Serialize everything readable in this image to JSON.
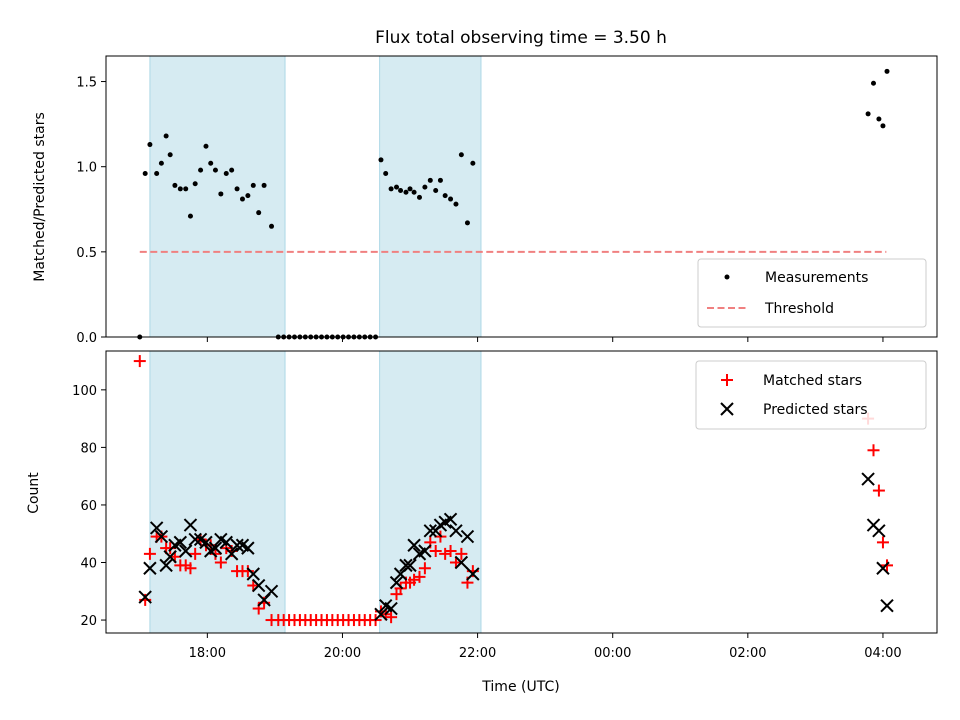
{
  "chart_data": {
    "type": "scatter",
    "title": "Flux total observing time = 3.50 h",
    "xlabel": "Time (UTC)",
    "x_unit": "hours since 00:00 (day 1)",
    "xlim": [
      16.5,
      28.8
    ],
    "x_ticks": [
      {
        "value": 18,
        "label": "18:00"
      },
      {
        "value": 20,
        "label": "20:00"
      },
      {
        "value": 22,
        "label": "22:00"
      },
      {
        "value": 24,
        "label": "00:00"
      },
      {
        "value": 26,
        "label": "02:00"
      },
      {
        "value": 28,
        "label": "04:00"
      }
    ],
    "shaded_intervals": [
      {
        "start": 17.15,
        "end": 19.15,
        "color": "#add8e6"
      },
      {
        "start": 20.55,
        "end": 22.05,
        "color": "#add8e6"
      }
    ],
    "top": {
      "ylabel": "Matched/Predicted stars",
      "ylim": [
        0,
        1.65
      ],
      "y_ticks": [
        {
          "value": 0,
          "label": "0.0"
        },
        {
          "value": 0.5,
          "label": "0.5"
        },
        {
          "value": 1.0,
          "label": "1.0"
        },
        {
          "value": 1.5,
          "label": "1.5"
        }
      ],
      "threshold": {
        "value": 0.5,
        "x_start": 17.0,
        "x_end": 28.05,
        "color": "#f08080"
      },
      "legend": {
        "position": "lower-right",
        "entries": [
          "Measurements",
          "Threshold"
        ]
      },
      "measurements": [
        [
          17.0,
          0.0
        ],
        [
          17.08,
          0.96
        ],
        [
          17.15,
          1.13
        ],
        [
          17.25,
          0.96
        ],
        [
          17.32,
          1.02
        ],
        [
          17.39,
          1.18
        ],
        [
          17.45,
          1.07
        ],
        [
          17.52,
          0.89
        ],
        [
          17.6,
          0.87
        ],
        [
          17.68,
          0.87
        ],
        [
          17.75,
          0.71
        ],
        [
          17.82,
          0.9
        ],
        [
          17.9,
          0.98
        ],
        [
          17.98,
          1.12
        ],
        [
          18.05,
          1.02
        ],
        [
          18.12,
          0.98
        ],
        [
          18.2,
          0.84
        ],
        [
          18.28,
          0.96
        ],
        [
          18.36,
          0.98
        ],
        [
          18.44,
          0.87
        ],
        [
          18.52,
          0.81
        ],
        [
          18.6,
          0.83
        ],
        [
          18.68,
          0.89
        ],
        [
          18.76,
          0.73
        ],
        [
          18.84,
          0.89
        ],
        [
          18.95,
          0.65
        ],
        [
          19.05,
          0.0
        ],
        [
          19.13,
          0.0
        ],
        [
          19.21,
          0.0
        ],
        [
          19.29,
          0.0
        ],
        [
          19.37,
          0.0
        ],
        [
          19.45,
          0.0
        ],
        [
          19.53,
          0.0
        ],
        [
          19.61,
          0.0
        ],
        [
          19.69,
          0.0
        ],
        [
          19.77,
          0.0
        ],
        [
          19.85,
          0.0
        ],
        [
          19.93,
          0.0
        ],
        [
          20.01,
          0.0
        ],
        [
          20.09,
          0.0
        ],
        [
          20.17,
          0.0
        ],
        [
          20.25,
          0.0
        ],
        [
          20.33,
          0.0
        ],
        [
          20.41,
          0.0
        ],
        [
          20.49,
          0.0
        ],
        [
          20.57,
          1.04
        ],
        [
          20.64,
          0.96
        ],
        [
          20.72,
          0.87
        ],
        [
          20.8,
          0.88
        ],
        [
          20.86,
          0.86
        ],
        [
          20.94,
          0.85
        ],
        [
          21.0,
          0.87
        ],
        [
          21.06,
          0.85
        ],
        [
          21.14,
          0.82
        ],
        [
          21.22,
          0.88
        ],
        [
          21.3,
          0.92
        ],
        [
          21.38,
          0.86
        ],
        [
          21.45,
          0.92
        ],
        [
          21.52,
          0.83
        ],
        [
          21.6,
          0.81
        ],
        [
          21.68,
          0.78
        ],
        [
          21.76,
          1.07
        ],
        [
          21.85,
          0.67
        ],
        [
          21.93,
          1.02
        ],
        [
          27.78,
          1.31
        ],
        [
          27.86,
          1.49
        ],
        [
          27.94,
          1.28
        ],
        [
          28.0,
          1.24
        ],
        [
          28.06,
          1.56
        ]
      ]
    },
    "bottom": {
      "ylabel": "Count",
      "ylim": [
        15.5,
        113.5
      ],
      "y_ticks": [
        {
          "value": 20,
          "label": "20"
        },
        {
          "value": 40,
          "label": "40"
        },
        {
          "value": 60,
          "label": "60"
        },
        {
          "value": 80,
          "label": "80"
        },
        {
          "value": 100,
          "label": "100"
        }
      ],
      "legend": {
        "position": "upper-right",
        "entries": [
          "Matched stars",
          "Predicted stars"
        ]
      },
      "series": [
        {
          "name": "Matched stars",
          "marker": "plus",
          "color": "#ff0000",
          "points": [
            [
              17.0,
              110
            ],
            [
              17.08,
              27
            ],
            [
              17.15,
              43
            ],
            [
              17.25,
              49
            ],
            [
              17.32,
              49
            ],
            [
              17.39,
              45
            ],
            [
              17.45,
              45
            ],
            [
              17.52,
              42
            ],
            [
              17.6,
              39
            ],
            [
              17.68,
              39
            ],
            [
              17.75,
              38
            ],
            [
              17.82,
              43
            ],
            [
              17.9,
              48
            ],
            [
              17.98,
              46
            ],
            [
              18.05,
              46
            ],
            [
              18.12,
              43
            ],
            [
              18.2,
              40
            ],
            [
              18.28,
              45
            ],
            [
              18.36,
              44
            ],
            [
              18.44,
              37
            ],
            [
              18.52,
              37
            ],
            [
              18.6,
              37
            ],
            [
              18.68,
              32
            ],
            [
              18.76,
              24
            ],
            [
              18.84,
              26
            ],
            [
              18.95,
              20
            ],
            [
              19.05,
              20
            ],
            [
              19.13,
              20
            ],
            [
              19.21,
              20
            ],
            [
              19.29,
              20
            ],
            [
              19.37,
              20
            ],
            [
              19.45,
              20
            ],
            [
              19.53,
              20
            ],
            [
              19.61,
              20
            ],
            [
              19.69,
              20
            ],
            [
              19.77,
              20
            ],
            [
              19.85,
              20
            ],
            [
              19.93,
              20
            ],
            [
              20.01,
              20
            ],
            [
              20.09,
              20
            ],
            [
              20.17,
              20
            ],
            [
              20.25,
              20
            ],
            [
              20.33,
              20
            ],
            [
              20.41,
              20
            ],
            [
              20.49,
              20
            ],
            [
              20.57,
              23
            ],
            [
              20.64,
              22
            ],
            [
              20.72,
              21
            ],
            [
              20.8,
              29
            ],
            [
              20.86,
              31
            ],
            [
              20.94,
              33
            ],
            [
              21.0,
              33
            ],
            [
              21.06,
              34
            ],
            [
              21.14,
              35
            ],
            [
              21.22,
              38
            ],
            [
              21.3,
              47
            ],
            [
              21.38,
              44
            ],
            [
              21.45,
              49
            ],
            [
              21.52,
              43
            ],
            [
              21.6,
              44
            ],
            [
              21.68,
              40
            ],
            [
              21.76,
              43
            ],
            [
              21.85,
              33
            ],
            [
              21.93,
              37
            ],
            [
              27.78,
              90
            ],
            [
              27.86,
              79
            ],
            [
              27.94,
              65
            ],
            [
              28.0,
              47
            ],
            [
              28.06,
              39
            ]
          ]
        },
        {
          "name": "Predicted stars",
          "marker": "x",
          "color": "#000000",
          "points": [
            [
              17.08,
              28
            ],
            [
              17.15,
              38
            ],
            [
              17.25,
              52
            ],
            [
              17.32,
              49
            ],
            [
              17.39,
              39
            ],
            [
              17.45,
              42
            ],
            [
              17.52,
              46
            ],
            [
              17.6,
              47
            ],
            [
              17.68,
              44
            ],
            [
              17.75,
              53
            ],
            [
              17.82,
              48
            ],
            [
              17.9,
              48
            ],
            [
              17.98,
              47
            ],
            [
              18.05,
              44
            ],
            [
              18.12,
              45
            ],
            [
              18.2,
              48
            ],
            [
              18.28,
              47
            ],
            [
              18.36,
              43
            ],
            [
              18.44,
              46
            ],
            [
              18.52,
              46
            ],
            [
              18.6,
              45
            ],
            [
              18.68,
              36
            ],
            [
              18.76,
              32
            ],
            [
              18.84,
              27
            ],
            [
              18.95,
              30
            ],
            [
              20.57,
              22
            ],
            [
              20.64,
              25
            ],
            [
              20.72,
              24
            ],
            [
              20.8,
              33
            ],
            [
              20.86,
              36
            ],
            [
              20.94,
              39
            ],
            [
              21.0,
              39
            ],
            [
              21.06,
              46
            ],
            [
              21.14,
              43
            ],
            [
              21.22,
              44
            ],
            [
              21.3,
              51
            ],
            [
              21.38,
              51
            ],
            [
              21.45,
              53
            ],
            [
              21.52,
              54
            ],
            [
              21.6,
              55
            ],
            [
              21.68,
              51
            ],
            [
              21.76,
              40
            ],
            [
              21.85,
              49
            ],
            [
              21.93,
              36
            ],
            [
              27.78,
              69
            ],
            [
              27.86,
              53
            ],
            [
              27.94,
              51
            ],
            [
              28.0,
              38
            ],
            [
              28.06,
              25
            ]
          ]
        }
      ]
    }
  }
}
